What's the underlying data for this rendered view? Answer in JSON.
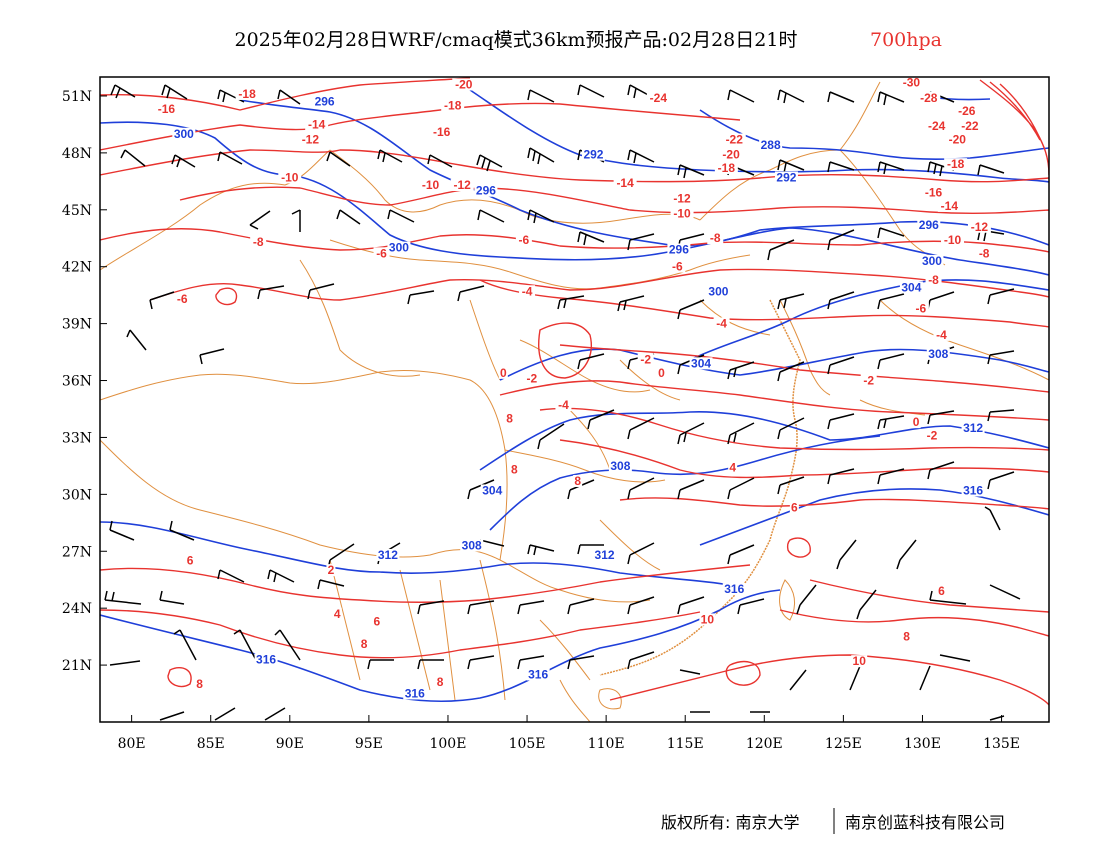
{
  "title": {
    "main": "2025年02月28日WRF/cmaq模式36km预报产品:02月28日21时",
    "level": "700hpa"
  },
  "footer": {
    "copyright_left": "版权所有: 南京大学",
    "copyright_right": "南京创蓝科技有限公司"
  },
  "colors": {
    "temperature": "#e8332f",
    "geopotential": "#1f3fd9",
    "boundary": "#e09040",
    "wind": "#000000"
  },
  "map": {
    "lon_range": [
      78,
      138
    ],
    "lat_range": [
      18,
      52
    ],
    "lon_ticks": [
      "80E",
      "85E",
      "90E",
      "95E",
      "100E",
      "105E",
      "110E",
      "115E",
      "120E",
      "125E",
      "130E",
      "135E"
    ],
    "lat_ticks": [
      "51N",
      "48N",
      "45N",
      "42N",
      "39N",
      "36N",
      "33N",
      "30N",
      "27N",
      "24N",
      "21N"
    ]
  },
  "contours": {
    "temperature_labels": [
      {
        "t": "-16",
        "lon": 82.2,
        "lat": 50.2
      },
      {
        "t": "-18",
        "lon": 87.3,
        "lat": 51.0
      },
      {
        "t": "-14",
        "lon": 91.7,
        "lat": 49.4
      },
      {
        "t": "-12",
        "lon": 91.3,
        "lat": 48.6
      },
      {
        "t": "-10",
        "lon": 90.0,
        "lat": 46.6
      },
      {
        "t": "-8",
        "lon": 88.0,
        "lat": 43.2
      },
      {
        "t": "-6",
        "lon": 95.8,
        "lat": 42.6
      },
      {
        "t": "-6",
        "lon": 83.2,
        "lat": 40.2
      },
      {
        "t": "-20",
        "lon": 101.0,
        "lat": 51.5
      },
      {
        "t": "-18",
        "lon": 100.3,
        "lat": 50.4
      },
      {
        "t": "-16",
        "lon": 99.6,
        "lat": 49.0
      },
      {
        "t": "-10",
        "lon": 98.9,
        "lat": 46.2
      },
      {
        "t": "-12",
        "lon": 100.9,
        "lat": 46.2
      },
      {
        "t": "-6",
        "lon": 104.8,
        "lat": 43.3
      },
      {
        "t": "-4",
        "lon": 105.0,
        "lat": 40.6
      },
      {
        "t": "-24",
        "lon": 113.3,
        "lat": 50.8
      },
      {
        "t": "-22",
        "lon": 118.1,
        "lat": 48.6
      },
      {
        "t": "-20",
        "lon": 117.9,
        "lat": 47.8
      },
      {
        "t": "-18",
        "lon": 117.6,
        "lat": 47.1
      },
      {
        "t": "-14",
        "lon": 111.2,
        "lat": 46.3
      },
      {
        "t": "-12",
        "lon": 114.8,
        "lat": 45.5
      },
      {
        "t": "-10",
        "lon": 114.8,
        "lat": 44.7
      },
      {
        "t": "-8",
        "lon": 116.9,
        "lat": 43.4
      },
      {
        "t": "-6",
        "lon": 114.5,
        "lat": 41.9
      },
      {
        "t": "-4",
        "lon": 117.3,
        "lat": 38.9
      },
      {
        "t": "-2",
        "lon": 112.5,
        "lat": 37.0
      },
      {
        "t": "0",
        "lon": 113.5,
        "lat": 36.3
      },
      {
        "t": "-2",
        "lon": 105.3,
        "lat": 36.0
      },
      {
        "t": "-4",
        "lon": 107.3,
        "lat": 34.6
      },
      {
        "t": "0",
        "lon": 103.5,
        "lat": 36.3
      },
      {
        "t": "-30",
        "lon": 129.3,
        "lat": 51.6
      },
      {
        "t": "-28",
        "lon": 130.4,
        "lat": 50.8
      },
      {
        "t": "-26",
        "lon": 132.8,
        "lat": 50.1
      },
      {
        "t": "-24",
        "lon": 130.9,
        "lat": 49.3
      },
      {
        "t": "-22",
        "lon": 133.0,
        "lat": 49.3
      },
      {
        "t": "-20",
        "lon": 132.2,
        "lat": 48.6
      },
      {
        "t": "-18",
        "lon": 132.1,
        "lat": 47.3
      },
      {
        "t": "-16",
        "lon": 130.7,
        "lat": 45.8
      },
      {
        "t": "-14",
        "lon": 131.7,
        "lat": 45.1
      },
      {
        "t": "-12",
        "lon": 133.6,
        "lat": 44.0
      },
      {
        "t": "-10",
        "lon": 131.9,
        "lat": 43.3
      },
      {
        "t": "-8",
        "lon": 133.9,
        "lat": 42.6
      },
      {
        "t": "-8",
        "lon": 130.7,
        "lat": 41.2
      },
      {
        "t": "-6",
        "lon": 129.9,
        "lat": 39.7
      },
      {
        "t": "-4",
        "lon": 131.2,
        "lat": 38.3
      },
      {
        "t": "-2",
        "lon": 126.6,
        "lat": 35.9
      },
      {
        "t": "0",
        "lon": 129.6,
        "lat": 33.7
      },
      {
        "t": "-2",
        "lon": 130.6,
        "lat": 33.0
      },
      {
        "t": "4",
        "lon": 118.0,
        "lat": 31.3
      },
      {
        "t": "6",
        "lon": 121.9,
        "lat": 29.2
      },
      {
        "t": "8",
        "lon": 103.9,
        "lat": 33.9
      },
      {
        "t": "8",
        "lon": 104.2,
        "lat": 31.2
      },
      {
        "t": "8",
        "lon": 108.2,
        "lat": 30.6
      },
      {
        "t": "6",
        "lon": 83.7,
        "lat": 26.4
      },
      {
        "t": "2",
        "lon": 92.6,
        "lat": 25.9
      },
      {
        "t": "4",
        "lon": 93.0,
        "lat": 23.6
      },
      {
        "t": "6",
        "lon": 95.5,
        "lat": 23.2
      },
      {
        "t": "8",
        "lon": 94.7,
        "lat": 22.0
      },
      {
        "t": "8",
        "lon": 84.3,
        "lat": 19.9
      },
      {
        "t": "8",
        "lon": 99.5,
        "lat": 20.0
      },
      {
        "t": "10",
        "lon": 116.4,
        "lat": 23.3
      },
      {
        "t": "8",
        "lon": 129.0,
        "lat": 22.4
      },
      {
        "t": "6",
        "lon": 131.2,
        "lat": 24.8
      },
      {
        "t": "10",
        "lon": 126.0,
        "lat": 21.1
      }
    ],
    "geopotential_labels": [
      {
        "t": "300",
        "lon": 83.3,
        "lat": 48.9
      },
      {
        "t": "296",
        "lon": 92.2,
        "lat": 50.6
      },
      {
        "t": "296",
        "lon": 102.4,
        "lat": 45.9
      },
      {
        "t": "300",
        "lon": 96.9,
        "lat": 42.9
      },
      {
        "t": "292",
        "lon": 109.2,
        "lat": 47.8
      },
      {
        "t": "288",
        "lon": 120.4,
        "lat": 48.3
      },
      {
        "t": "292",
        "lon": 121.4,
        "lat": 46.6
      },
      {
        "t": "296",
        "lon": 114.6,
        "lat": 42.8
      },
      {
        "t": "300",
        "lon": 117.1,
        "lat": 40.6
      },
      {
        "t": "296",
        "lon": 130.4,
        "lat": 44.1
      },
      {
        "t": "300",
        "lon": 130.6,
        "lat": 42.2
      },
      {
        "t": "304",
        "lon": 129.3,
        "lat": 40.8
      },
      {
        "t": "304",
        "lon": 116.0,
        "lat": 36.8
      },
      {
        "t": "308",
        "lon": 131.0,
        "lat": 37.3
      },
      {
        "t": "312",
        "lon": 133.2,
        "lat": 33.4
      },
      {
        "t": "308",
        "lon": 110.9,
        "lat": 31.4
      },
      {
        "t": "304",
        "lon": 102.8,
        "lat": 30.1
      },
      {
        "t": "316",
        "lon": 133.2,
        "lat": 30.1
      },
      {
        "t": "308",
        "lon": 101.5,
        "lat": 27.2
      },
      {
        "t": "312",
        "lon": 96.2,
        "lat": 26.7
      },
      {
        "t": "312",
        "lon": 109.9,
        "lat": 26.7
      },
      {
        "t": "316",
        "lon": 118.1,
        "lat": 24.9
      },
      {
        "t": "316",
        "lon": 88.5,
        "lat": 21.2
      },
      {
        "t": "316",
        "lon": 105.7,
        "lat": 20.4
      },
      {
        "t": "316",
        "lon": 97.9,
        "lat": 19.4
      }
    ]
  }
}
